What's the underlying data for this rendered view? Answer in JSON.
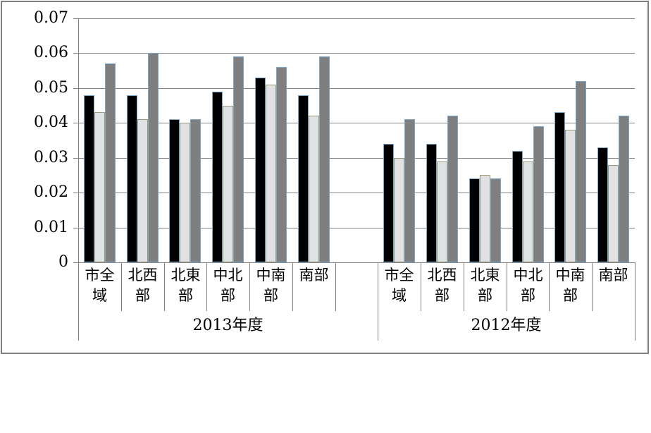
{
  "page": {
    "background_color": "#FFFFFF",
    "frame_border_color": "#808080"
  },
  "chart_data": {
    "type": "bar",
    "title": "",
    "xlabel": "",
    "ylabel": "",
    "ylim": [
      0,
      0.07
    ],
    "y_tick_step": 0.01,
    "y_ticks": [
      "0",
      "0.01",
      "0.02",
      "0.03",
      "0.04",
      "0.05",
      "0.06",
      "0.07"
    ],
    "grid": true,
    "legend_position": "none",
    "gridline_color": "#848484",
    "axis_line_color": "#808080",
    "text_color": "#000000",
    "series": [
      {
        "name": "series-1-black",
        "fill": "#000000",
        "border": "#7BA7CB"
      },
      {
        "name": "series-2-light-gray",
        "fill": "#DFE1E2",
        "border": "#9C9778"
      },
      {
        "name": "series-3-dark-gray",
        "fill": "#7F7F7F",
        "border": "#7BA7CB"
      }
    ],
    "groups": [
      {
        "label": "2013年度",
        "categories": [
          "市全域",
          "北西部",
          "北東部",
          "中北部",
          "中南部",
          "南部"
        ],
        "values": [
          [
            0.048,
            0.043,
            0.057
          ],
          [
            0.048,
            0.041,
            0.06
          ],
          [
            0.041,
            0.04,
            0.041
          ],
          [
            0.049,
            0.045,
            0.059
          ],
          [
            0.053,
            0.051,
            0.056
          ],
          [
            0.048,
            0.042,
            0.059
          ]
        ],
        "trailing_blank_slot": true
      },
      {
        "label": "2012年度",
        "categories": [
          "市全域",
          "北西部",
          "北東部",
          "中北部",
          "中南部",
          "南部"
        ],
        "values": [
          [
            0.034,
            0.03,
            0.041
          ],
          [
            0.034,
            0.029,
            0.042
          ],
          [
            0.024,
            0.025,
            0.024
          ],
          [
            0.032,
            0.029,
            0.039
          ],
          [
            0.043,
            0.038,
            0.052
          ],
          [
            0.033,
            0.028,
            0.042
          ]
        ],
        "trailing_blank_slot": false
      }
    ]
  }
}
